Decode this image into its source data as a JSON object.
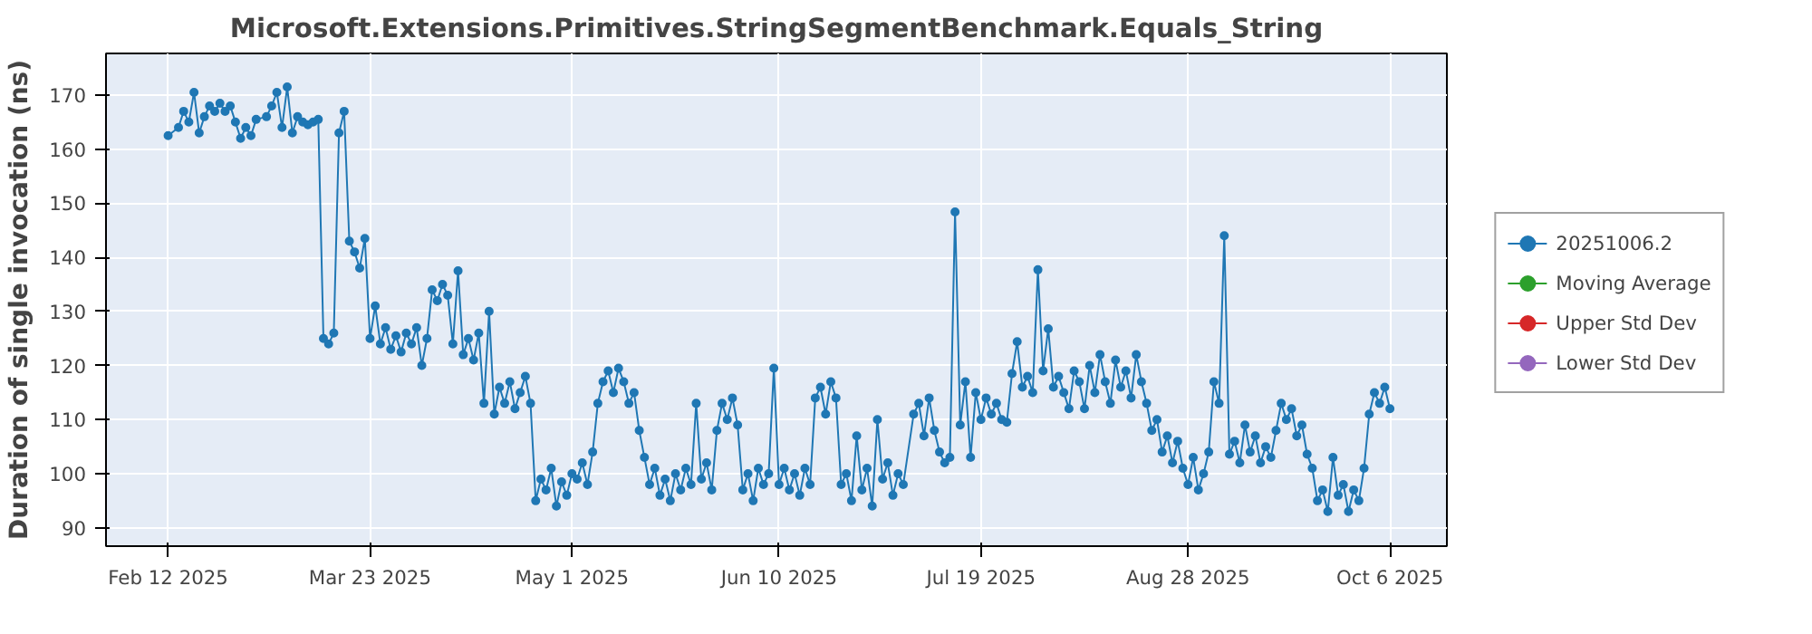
{
  "chart_data": {
    "type": "line",
    "title": "Microsoft.Extensions.Primitives.StringSegmentBenchmark.Equals_String",
    "ylabel": "Duration of single invocation (ns)",
    "xlim": [
      "2025-01-31",
      "2025-10-17"
    ],
    "ylim": [
      86.6,
      177.7
    ],
    "xticks": [
      {
        "value": "2025-02-12",
        "label": "Feb 12 2025"
      },
      {
        "value": "2025-03-23",
        "label": "Mar 23 2025"
      },
      {
        "value": "2025-05-01",
        "label": "May 1 2025"
      },
      {
        "value": "2025-06-10",
        "label": "Jun 10 2025"
      },
      {
        "value": "2025-07-19",
        "label": "Jul 19 2025"
      },
      {
        "value": "2025-08-28",
        "label": "Aug 28 2025"
      },
      {
        "value": "2025-10-06",
        "label": "Oct 6 2025"
      }
    ],
    "yticks": [
      90,
      100,
      110,
      120,
      130,
      140,
      150,
      160,
      170
    ],
    "grid": true,
    "legend": "right",
    "marker": "circle",
    "line_style": "solid",
    "series": [
      {
        "name": "20251006.2",
        "color": "#1f77b4",
        "x": [
          "2025-02-12",
          "2025-02-14",
          "2025-02-15",
          "2025-02-16",
          "2025-02-17",
          "2025-02-18",
          "2025-02-19",
          "2025-02-20",
          "2025-02-21",
          "2025-02-22",
          "2025-02-23",
          "2025-02-24",
          "2025-02-25",
          "2025-02-26",
          "2025-02-27",
          "2025-02-28",
          "2025-03-01",
          "2025-03-03",
          "2025-03-04",
          "2025-03-05",
          "2025-03-06",
          "2025-03-07",
          "2025-03-08",
          "2025-03-09",
          "2025-03-10",
          "2025-03-11",
          "2025-03-12",
          "2025-03-13",
          "2025-03-14",
          "2025-03-15",
          "2025-03-16",
          "2025-03-17",
          "2025-03-18",
          "2025-03-19",
          "2025-03-20",
          "2025-03-21",
          "2025-03-22",
          "2025-03-23",
          "2025-03-24",
          "2025-03-25",
          "2025-03-26",
          "2025-03-27",
          "2025-03-28",
          "2025-03-29",
          "2025-03-30",
          "2025-03-31",
          "2025-04-01",
          "2025-04-02",
          "2025-04-03",
          "2025-04-04",
          "2025-04-05",
          "2025-04-06",
          "2025-04-07",
          "2025-04-08",
          "2025-04-09",
          "2025-04-10",
          "2025-04-11",
          "2025-04-12",
          "2025-04-13",
          "2025-04-14",
          "2025-04-15",
          "2025-04-16",
          "2025-04-17",
          "2025-04-18",
          "2025-04-19",
          "2025-04-20",
          "2025-04-21",
          "2025-04-22",
          "2025-04-23",
          "2025-04-24",
          "2025-04-25",
          "2025-04-26",
          "2025-04-27",
          "2025-04-28",
          "2025-04-29",
          "2025-04-30",
          "2025-05-01",
          "2025-05-02",
          "2025-05-03",
          "2025-05-04",
          "2025-05-05",
          "2025-05-06",
          "2025-05-07",
          "2025-05-08",
          "2025-05-09",
          "2025-05-10",
          "2025-05-11",
          "2025-05-12",
          "2025-05-13",
          "2025-05-14",
          "2025-05-15",
          "2025-05-16",
          "2025-05-17",
          "2025-05-18",
          "2025-05-19",
          "2025-05-20",
          "2025-05-21",
          "2025-05-22",
          "2025-05-23",
          "2025-05-24",
          "2025-05-25",
          "2025-05-26",
          "2025-05-27",
          "2025-05-28",
          "2025-05-29",
          "2025-05-30",
          "2025-05-31",
          "2025-06-01",
          "2025-06-02",
          "2025-06-03",
          "2025-06-04",
          "2025-06-05",
          "2025-06-06",
          "2025-06-07",
          "2025-06-08",
          "2025-06-09",
          "2025-06-10",
          "2025-06-11",
          "2025-06-12",
          "2025-06-13",
          "2025-06-14",
          "2025-06-15",
          "2025-06-16",
          "2025-06-17",
          "2025-06-18",
          "2025-06-19",
          "2025-06-20",
          "2025-06-21",
          "2025-06-22",
          "2025-06-23",
          "2025-06-24",
          "2025-06-25",
          "2025-06-26",
          "2025-06-27",
          "2025-06-28",
          "2025-06-29",
          "2025-06-30",
          "2025-07-01",
          "2025-07-02",
          "2025-07-03",
          "2025-07-04",
          "2025-07-06",
          "2025-07-07",
          "2025-07-08",
          "2025-07-09",
          "2025-07-10",
          "2025-07-11",
          "2025-07-12",
          "2025-07-13",
          "2025-07-14",
          "2025-07-15",
          "2025-07-16",
          "2025-07-17",
          "2025-07-18",
          "2025-07-19",
          "2025-07-20",
          "2025-07-21",
          "2025-07-22",
          "2025-07-23",
          "2025-07-24",
          "2025-07-25",
          "2025-07-26",
          "2025-07-27",
          "2025-07-28",
          "2025-07-29",
          "2025-07-30",
          "2025-07-31",
          "2025-08-01",
          "2025-08-02",
          "2025-08-03",
          "2025-08-04",
          "2025-08-05",
          "2025-08-06",
          "2025-08-07",
          "2025-08-08",
          "2025-08-09",
          "2025-08-10",
          "2025-08-11",
          "2025-08-12",
          "2025-08-13",
          "2025-08-14",
          "2025-08-15",
          "2025-08-16",
          "2025-08-17",
          "2025-08-18",
          "2025-08-19",
          "2025-08-20",
          "2025-08-21",
          "2025-08-22",
          "2025-08-23",
          "2025-08-24",
          "2025-08-25",
          "2025-08-26",
          "2025-08-27",
          "2025-08-28",
          "2025-08-29",
          "2025-08-30",
          "2025-08-31",
          "2025-09-01",
          "2025-09-02",
          "2025-09-03",
          "2025-09-04",
          "2025-09-05",
          "2025-09-06",
          "2025-09-07",
          "2025-09-08",
          "2025-09-09",
          "2025-09-10",
          "2025-09-11",
          "2025-09-12",
          "2025-09-13",
          "2025-09-14",
          "2025-09-15",
          "2025-09-16",
          "2025-09-17",
          "2025-09-18",
          "2025-09-19",
          "2025-09-20",
          "2025-09-21",
          "2025-09-22",
          "2025-09-23",
          "2025-09-24",
          "2025-09-25",
          "2025-09-26",
          "2025-09-27",
          "2025-09-28",
          "2025-09-29",
          "2025-09-30",
          "2025-10-01",
          "2025-10-02",
          "2025-10-03",
          "2025-10-04",
          "2025-10-05",
          "2025-10-06"
        ],
        "values": [
          162.5,
          164,
          167,
          165,
          170.5,
          163,
          166,
          168,
          167,
          168.5,
          167,
          168,
          165,
          162,
          164,
          162.5,
          165.5,
          166,
          168,
          170.5,
          164,
          171.5,
          163,
          166,
          165,
          164.5,
          165,
          165.5,
          125,
          124,
          126,
          163,
          167,
          143,
          141,
          138,
          143.5,
          125,
          131,
          124,
          127,
          123,
          125.5,
          122.5,
          126,
          124,
          127,
          120,
          125,
          134,
          132,
          135,
          133,
          124,
          137.5,
          122,
          125,
          121,
          126,
          113,
          130,
          111,
          116,
          113,
          117,
          112,
          115,
          118,
          113,
          95,
          99,
          97,
          101,
          94,
          98.5,
          96,
          100,
          99,
          102,
          98,
          104,
          113,
          117,
          119,
          115,
          119.5,
          117,
          113,
          115,
          108,
          103,
          98,
          101,
          96,
          99,
          95,
          100,
          97,
          101,
          98,
          113,
          99,
          102,
          97,
          108,
          113,
          110,
          114,
          109,
          97,
          100,
          95,
          101,
          98,
          100,
          119.5,
          98,
          101,
          97,
          100,
          96,
          101,
          98,
          114,
          116,
          111,
          117,
          114,
          98,
          100,
          95,
          107,
          97,
          101,
          94,
          110,
          99,
          102,
          96,
          100,
          98,
          111,
          113,
          107,
          114,
          108,
          104,
          102,
          103,
          148.4,
          109,
          117,
          103,
          115,
          110,
          114,
          111,
          113,
          110,
          109.5,
          118.5,
          124.4,
          116,
          118,
          115,
          137.7,
          119,
          126.8,
          116,
          118,
          115,
          112,
          119,
          117,
          112,
          120,
          115,
          122,
          117,
          113,
          121,
          116,
          119,
          114,
          122,
          117,
          113,
          108,
          110,
          104,
          107,
          102,
          106,
          101,
          98,
          103,
          97,
          100,
          104,
          117,
          113,
          144,
          103.6,
          106,
          102,
          109,
          104,
          107,
          102,
          105,
          103,
          108,
          113,
          110,
          112,
          107,
          109,
          103.6,
          101,
          95,
          97,
          93,
          103,
          96,
          98,
          93,
          97,
          95,
          101,
          111,
          115,
          113,
          116,
          112
        ]
      },
      {
        "name": "Moving Average",
        "color": "#2ca02c"
      },
      {
        "name": "Upper Std Dev",
        "color": "#d62728"
      },
      {
        "name": "Lower Std Dev",
        "color": "#9467bd"
      }
    ]
  }
}
